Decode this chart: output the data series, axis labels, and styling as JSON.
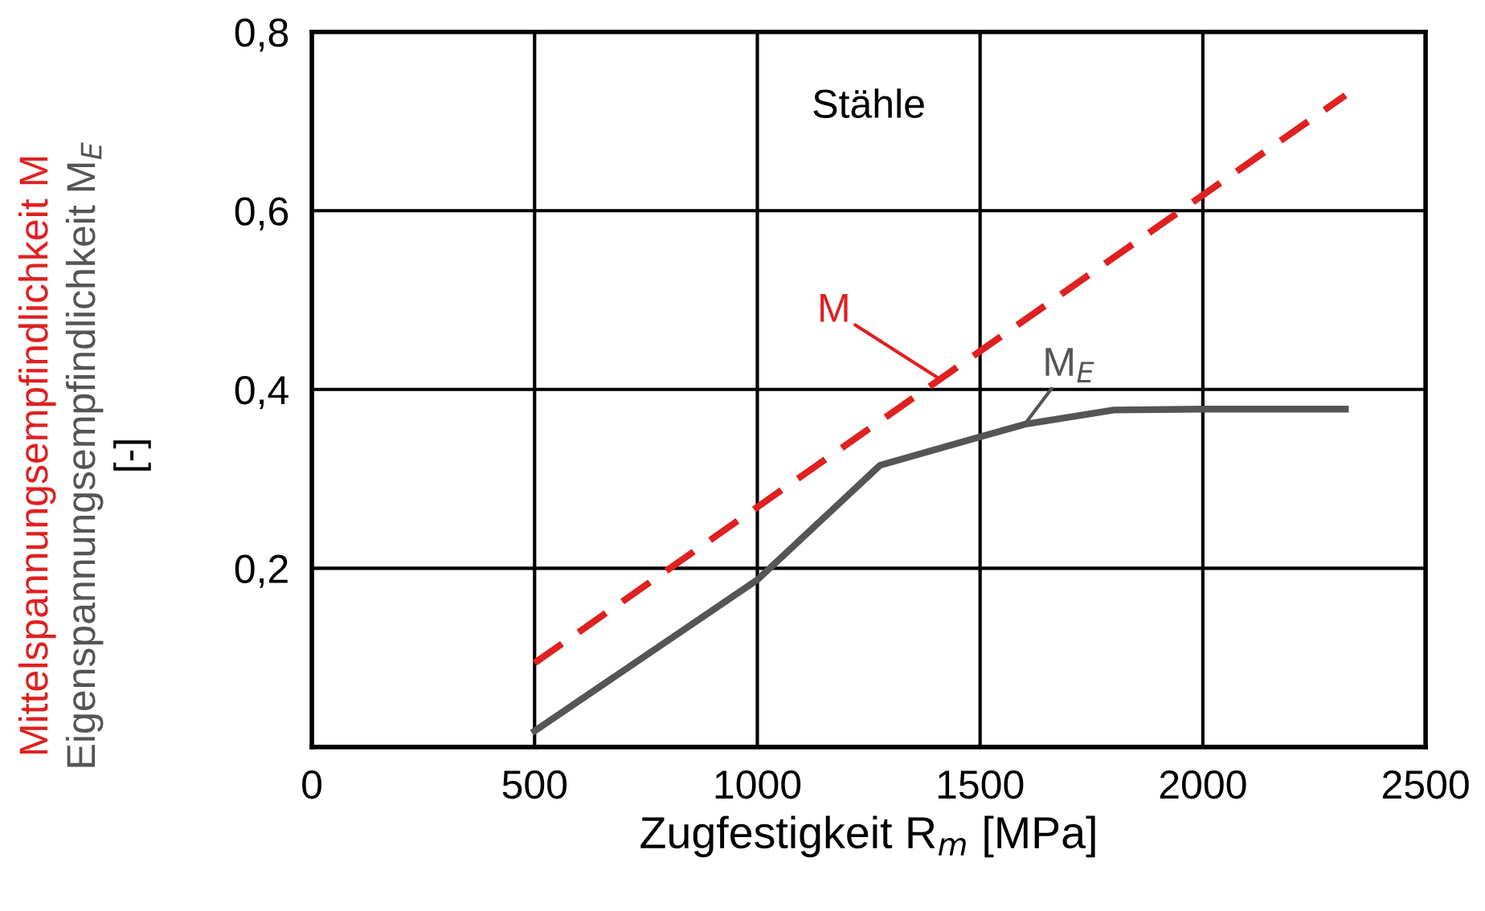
{
  "chart_data": {
    "type": "line",
    "title": "Stähle",
    "xlabel": "Zugfestigkeit R$_{m}$ [MPa]",
    "ylabel": "Mittelspannungsempfindlichkeit M\nEigenspannungsempfindlichkeit M$_{E}$\n[-]",
    "series": [
      {
        "name": "M",
        "color": "#e02020",
        "line_style": "dashed",
        "x": [
          500,
          2320
        ],
        "values": [
          0.094,
          0.729
        ]
      },
      {
        "name": "M$_{E}$",
        "color": "#555555",
        "line_style": "solid",
        "x": [
          500,
          1000,
          1275,
          1500,
          1600,
          1800,
          2000,
          2320
        ],
        "values": [
          0.018,
          0.187,
          0.315,
          0.347,
          0.361,
          0.377,
          0.378,
          0.378
        ]
      }
    ],
    "xlim": [
      0,
      2500
    ],
    "ylim": [
      0,
      0.8
    ],
    "xticks": [
      0,
      500,
      1000,
      1500,
      2000,
      2500
    ],
    "yticks": [
      {
        "value": 0.2,
        "label": "0,2"
      },
      {
        "value": 0.4,
        "label": "0,4"
      },
      {
        "value": 0.6,
        "label": "0,6"
      },
      {
        "value": 0.8,
        "label": "0,8"
      }
    ],
    "grid": true,
    "legend": false,
    "marker": "none"
  }
}
